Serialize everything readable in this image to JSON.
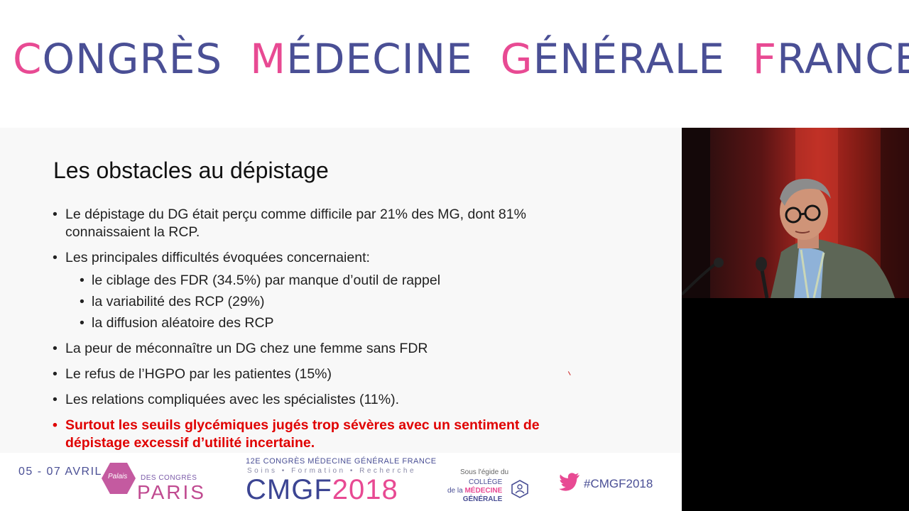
{
  "banner": {
    "words": [
      {
        "first": "C",
        "rest": "ONGRÈS"
      },
      {
        "first": "M",
        "rest": "ÉDECINE"
      },
      {
        "first": "G",
        "rest": "ÉNÉRALE"
      },
      {
        "first": "F",
        "rest": "RANCE"
      }
    ]
  },
  "slide": {
    "title": "Les obstacles au dépistage",
    "bullets": [
      "Le dépistage du DG était perçu comme difficile par 21% des MG, dont 81% connaissaient la RCP.",
      "Les principales difficultés évoquées concernaient:",
      "La peur de méconnaître un DG chez une femme sans FDR",
      "Le refus de l’HGPO par les patientes (15%)",
      "Les  relations compliquées avec les spécialistes (11%).",
      "Surtout les seuils glycémiques jugés trop sévères avec un sentiment de dépistage excessif d’utilité incertaine."
    ],
    "sub_bullets": [
      "le ciblage des FDR (34.5%) par manque d’outil de rappel",
      "la variabilité des RCP (29%)",
      "la diffusion aléatoire des RCP"
    ]
  },
  "footer": {
    "dates": "05 - 07 AVRIL",
    "palais_small": "Palais",
    "palais_des": "DES CONGRÈS",
    "palais_city": "PARIS",
    "congress_line": "12E CONGRÈS MÉDECINE GÉNÉRALE FRANCE",
    "tagline": "Soins • Formation • Recherche",
    "logo_a": "CMGF",
    "logo_b": "2018",
    "egide": "Sous l'égide du",
    "college_1": "COLLÈGE",
    "college_2": "de la",
    "college_3": "MÉDECINE",
    "college_4": "GÉNÉRALE",
    "hashtag": "#CMGF2018"
  },
  "colors": {
    "brand_blue": "#4a4f95",
    "brand_pink": "#e84a93",
    "alert_red": "#e00000"
  }
}
